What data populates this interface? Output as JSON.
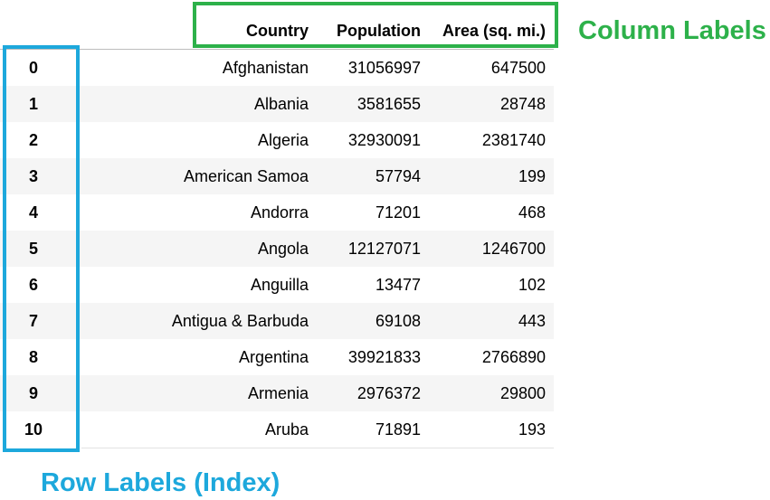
{
  "table": {
    "columns": {
      "index": "",
      "country": "Country",
      "population": "Population",
      "area": "Area (sq. mi.)"
    },
    "rows": [
      {
        "index": "0",
        "country": "Afghanistan",
        "population": "31056997",
        "area": "647500"
      },
      {
        "index": "1",
        "country": "Albania",
        "population": "3581655",
        "area": "28748"
      },
      {
        "index": "2",
        "country": "Algeria",
        "population": "32930091",
        "area": "2381740"
      },
      {
        "index": "3",
        "country": "American Samoa",
        "population": "57794",
        "area": "199"
      },
      {
        "index": "4",
        "country": "Andorra",
        "population": "71201",
        "area": "468"
      },
      {
        "index": "5",
        "country": "Angola",
        "population": "12127071",
        "area": "1246700"
      },
      {
        "index": "6",
        "country": "Anguilla",
        "population": "13477",
        "area": "102"
      },
      {
        "index": "7",
        "country": "Antigua & Barbuda",
        "population": "69108",
        "area": "443"
      },
      {
        "index": "8",
        "country": "Argentina",
        "population": "39921833",
        "area": "2766890"
      },
      {
        "index": "9",
        "country": "Armenia",
        "population": "2976372",
        "area": "29800"
      },
      {
        "index": "10",
        "country": "Aruba",
        "population": "71891",
        "area": "193"
      }
    ]
  },
  "annotations": {
    "column_labels": "Column Labels",
    "row_labels": "Row Labels (Index)"
  },
  "colors": {
    "column_annotation": "#2db14a",
    "row_annotation": "#1da8dc",
    "alt_row_background": "#f5f5f5"
  }
}
